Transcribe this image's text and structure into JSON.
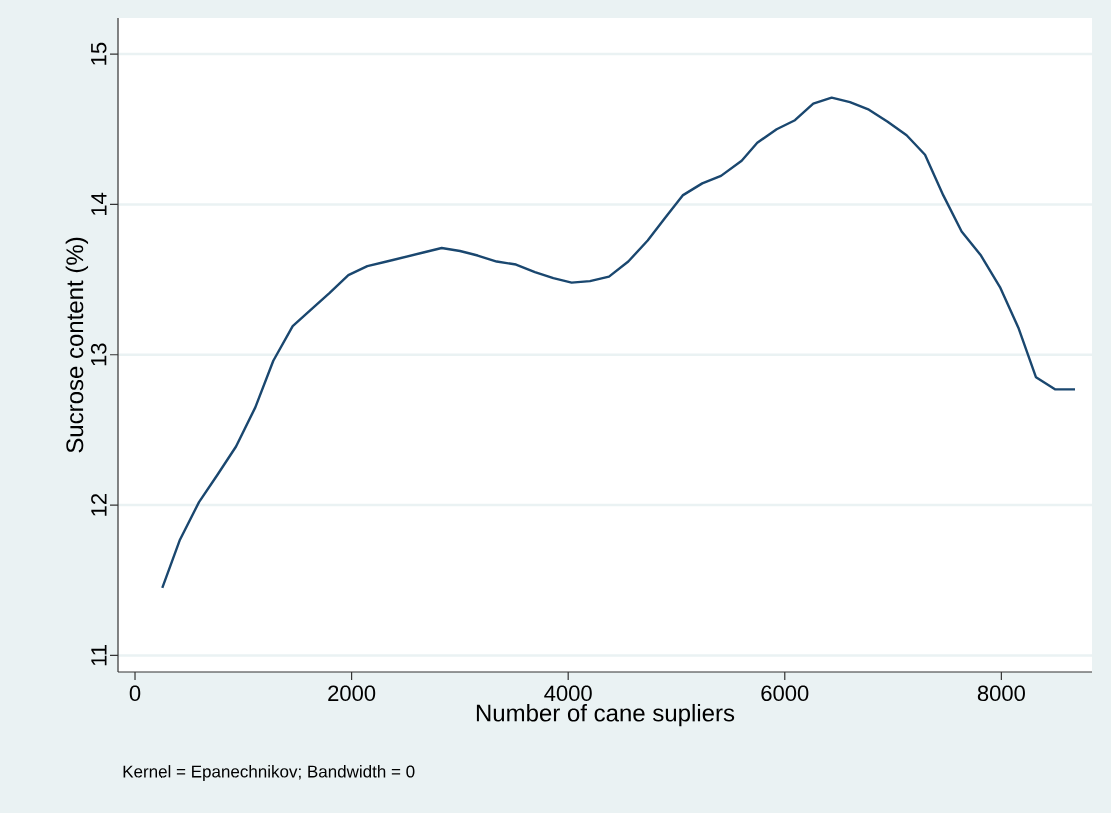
{
  "chart_data": {
    "type": "line",
    "xlabel": "Number of cane supliers",
    "ylabel": "Sucrose content (%)",
    "annotations": [
      "Kernel = Epanechnikov; Bandwidth = 0"
    ],
    "x": [
      252,
      415,
      591,
      760,
      933,
      1111,
      1277,
      1456,
      1625,
      1795,
      1970,
      2145,
      2324,
      2493,
      2662,
      2832,
      3001,
      3164,
      3340,
      3518,
      3693,
      3863,
      4032,
      4201,
      4377,
      4555,
      4734,
      4894,
      5057,
      5238,
      5411,
      5602,
      5746,
      5925,
      6094,
      6263,
      6433,
      6602,
      6777,
      6950,
      7125,
      7295,
      7464,
      7633,
      7812,
      7987,
      8157,
      8320,
      8495,
      8680
    ],
    "series": [
      {
        "color": "#1a476f",
        "values": [
          11.45,
          11.77,
          12.02,
          12.2,
          12.39,
          12.65,
          12.96,
          13.19,
          13.3,
          13.41,
          13.53,
          13.59,
          13.62,
          13.65,
          13.68,
          13.71,
          13.69,
          13.66,
          13.62,
          13.6,
          13.55,
          13.51,
          13.48,
          13.49,
          13.52,
          13.62,
          13.76,
          13.91,
          14.06,
          14.14,
          14.19,
          14.29,
          14.41,
          14.5,
          14.56,
          14.67,
          14.71,
          14.68,
          14.63,
          14.55,
          14.46,
          14.33,
          14.06,
          13.82,
          13.66,
          13.45,
          13.18,
          12.85,
          12.77,
          12.77
        ]
      }
    ],
    "xlim": [
      -157,
      8837
    ],
    "ylim": [
      10.89,
      15.24
    ],
    "xticks": [
      0,
      2000,
      4000,
      6000,
      8000
    ],
    "yticks": [
      11,
      12,
      13,
      14,
      15
    ],
    "grid": "y",
    "marker": "none",
    "line_style": "solid"
  }
}
